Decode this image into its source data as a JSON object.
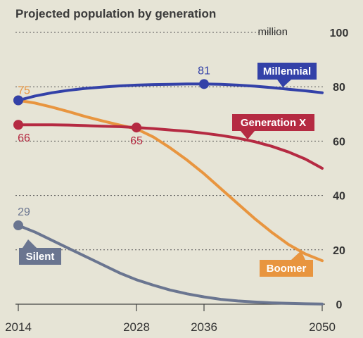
{
  "chart_data": {
    "type": "line",
    "title": "Projected population by generation",
    "unit_label": "million",
    "x": [
      2014,
      2016,
      2018,
      2020,
      2022,
      2024,
      2026,
      2028,
      2030,
      2032,
      2034,
      2036,
      2038,
      2040,
      2042,
      2044,
      2046,
      2048,
      2050
    ],
    "xticks": [
      2014,
      2028,
      2036,
      2050
    ],
    "ylim": [
      0,
      100
    ],
    "yticks": [
      0,
      20,
      40,
      60,
      80,
      100
    ],
    "grid": "horizontal-dotted",
    "series": [
      {
        "name": "Millennial",
        "color": "#3341a8",
        "values": [
          75,
          76.6,
          77.8,
          78.7,
          79.4,
          79.9,
          80.3,
          80.6,
          80.8,
          80.9,
          81,
          81,
          80.9,
          80.6,
          80.2,
          79.7,
          79.1,
          78.5,
          77.8
        ]
      },
      {
        "name": "Generation X",
        "color": "#b52a42",
        "values": [
          66,
          66,
          66,
          65.9,
          65.7,
          65.5,
          65.3,
          65,
          64.6,
          64.1,
          63.6,
          62.9,
          62.1,
          61.1,
          59.8,
          58.1,
          56,
          53.4,
          50
        ]
      },
      {
        "name": "Boomer",
        "color": "#e8953f",
        "values": [
          75,
          74,
          72.5,
          70.8,
          69,
          67.4,
          65.9,
          64.5,
          61.5,
          57.5,
          53,
          48,
          42.5,
          37,
          31.5,
          26.5,
          22,
          18.5,
          16
        ]
      },
      {
        "name": "Silent",
        "color": "#6a7590",
        "values": [
          29,
          26.5,
          23.5,
          20.5,
          17.5,
          14.5,
          11.5,
          9,
          7,
          5.2,
          3.8,
          2.7,
          1.8,
          1.2,
          0.8,
          0.5,
          0.3,
          0.15,
          0.05
        ]
      }
    ],
    "point_labels": [
      {
        "series": "Boomer",
        "x": 2014,
        "value": 75,
        "label": "75"
      },
      {
        "series": "Millennial",
        "x": 2036,
        "value": 81,
        "label": "81"
      },
      {
        "series": "Generation X",
        "x": 2014,
        "value": 66,
        "label": "66"
      },
      {
        "series": "Generation X",
        "x": 2028,
        "value": 65,
        "label": "65"
      },
      {
        "series": "Silent",
        "x": 2014,
        "value": 29,
        "label": "29"
      }
    ],
    "markers": [
      {
        "series": "Silent",
        "x": 2014,
        "value": 29
      },
      {
        "series": "Generation X",
        "x": 2014,
        "value": 66
      },
      {
        "series": "Boomer",
        "x": 2014,
        "value": 75
      },
      {
        "series": "Millennial",
        "x": 2014,
        "value": 75
      },
      {
        "series": "Generation X",
        "x": 2028,
        "value": 65
      },
      {
        "series": "Millennial",
        "x": 2036,
        "value": 81
      }
    ]
  }
}
